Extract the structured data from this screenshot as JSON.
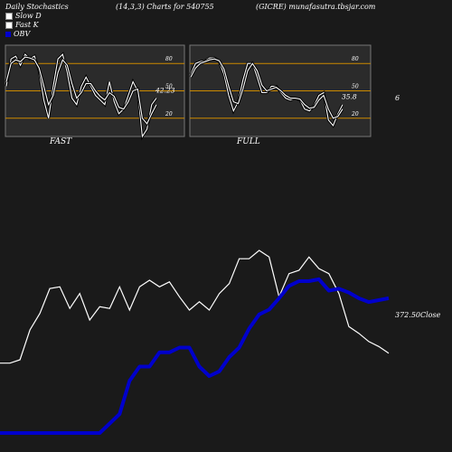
{
  "header": {
    "title": "Daily Stochastics",
    "params": "(14,3,3) Charts for 540755",
    "source": "(GICRE) munafasutra.tbsjar.com"
  },
  "legend": [
    {
      "label": "Slow D",
      "color": "#ffffff"
    },
    {
      "label": "Fast K",
      "color": "#ffffff"
    },
    {
      "label": "OBV",
      "color": "#0000cc"
    }
  ],
  "colors": {
    "background": "#1a1a1a",
    "panel": "#2b2b2b",
    "refline": "#cc8a00",
    "price": "#ffffff",
    "obv": "#0000cc"
  },
  "chart_data": [
    {
      "type": "line",
      "name": "stochastic-fast-panel",
      "label": "FAST",
      "ylim": [
        0,
        100
      ],
      "yticks": [
        "80",
        "50",
        "20"
      ],
      "reference_lines": [
        80,
        50,
        20
      ],
      "last_value": "42.23",
      "series": [
        {
          "name": "Fast K",
          "values": [
            55,
            85,
            88,
            78,
            90,
            85,
            88,
            72,
            40,
            20,
            55,
            85,
            90,
            70,
            42,
            35,
            55,
            65,
            55,
            45,
            40,
            35,
            60,
            38,
            25,
            30,
            45,
            60,
            50,
            0,
            8,
            35,
            42
          ]
        },
        {
          "name": "Slow D",
          "values": [
            60,
            80,
            84,
            82,
            87,
            86,
            84,
            75,
            55,
            35,
            45,
            70,
            84,
            78,
            58,
            42,
            48,
            58,
            58,
            50,
            44,
            40,
            48,
            44,
            32,
            30,
            38,
            50,
            52,
            20,
            14,
            25,
            35
          ]
        }
      ]
    },
    {
      "type": "line",
      "name": "stochastic-full-panel",
      "label": "FULL",
      "ylim": [
        0,
        100
      ],
      "yticks": [
        "80",
        "50",
        "20"
      ],
      "reference_lines": [
        80,
        50,
        20
      ],
      "last_value": "35.8",
      "series": [
        {
          "name": "Full K",
          "values": [
            68,
            80,
            82,
            83,
            86,
            86,
            82,
            68,
            45,
            28,
            38,
            62,
            80,
            80,
            65,
            48,
            48,
            55,
            55,
            48,
            42,
            40,
            42,
            40,
            30,
            28,
            34,
            45,
            48,
            18,
            12,
            25,
            35
          ]
        },
        {
          "name": "Full D",
          "values": [
            65,
            75,
            80,
            82,
            84,
            85,
            83,
            74,
            55,
            38,
            36,
            52,
            72,
            80,
            72,
            56,
            50,
            52,
            54,
            50,
            45,
            42,
            42,
            41,
            35,
            31,
            32,
            40,
            45,
            30,
            20,
            22,
            30
          ]
        }
      ]
    },
    {
      "type": "line",
      "name": "price-obv-panel",
      "label": "Close",
      "last_value": "372.50",
      "series": [
        {
          "name": "Close",
          "values": [
            370,
            370,
            372,
            390,
            400,
            415,
            416,
            403,
            412,
            396,
            404,
            403,
            416,
            402,
            416,
            420,
            416,
            419,
            410,
            402,
            407,
            402,
            412,
            418,
            433,
            433,
            438,
            434,
            410,
            424,
            426,
            434,
            427,
            424,
            412,
            392,
            388,
            383,
            380,
            376
          ]
        },
        {
          "name": "OBV",
          "values": [
            120,
            120,
            120,
            120,
            120,
            120,
            120,
            120,
            120,
            120,
            120,
            130,
            140,
            175,
            190,
            190,
            205,
            205,
            210,
            210,
            190,
            180,
            185,
            200,
            210,
            230,
            245,
            250,
            262,
            275,
            280,
            280,
            282,
            270,
            272,
            268,
            262,
            258,
            260,
            262
          ]
        }
      ]
    },
    {
      "type": "text",
      "name": "stray-label",
      "value": "6"
    }
  ]
}
